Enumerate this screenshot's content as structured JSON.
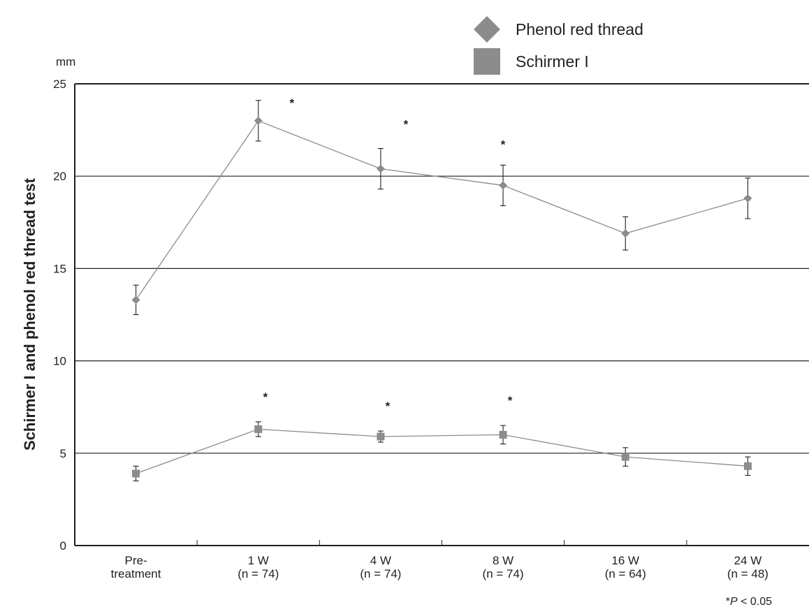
{
  "chart_data": {
    "type": "line",
    "ylabel": "Schirmer I and phenol red thread test",
    "y_unit": "mm",
    "ylim": [
      0,
      25
    ],
    "yticks": [
      "0",
      "5",
      "10",
      "15",
      "20",
      "25"
    ],
    "grid": "horizontal",
    "legend_position": "top-right",
    "categories": [
      [
        "Pre-",
        "treatment"
      ],
      [
        "1 W",
        "(n = 74)"
      ],
      [
        "4 W",
        "(n = 74)"
      ],
      [
        "8 W",
        "(n = 74)"
      ],
      [
        "16 W",
        "(n = 64)"
      ],
      [
        "24 W",
        "(n = 48)"
      ]
    ],
    "series": [
      {
        "name": "Phenol red thread",
        "marker": "diamond",
        "color": "#8c8c8c",
        "values": [
          13.3,
          23.0,
          20.4,
          19.5,
          16.9,
          18.8
        ],
        "error": [
          0.8,
          1.1,
          1.1,
          1.1,
          0.9,
          1.1
        ],
        "significant": [
          false,
          true,
          true,
          true,
          false,
          false
        ]
      },
      {
        "name": "Schirmer I",
        "marker": "square",
        "color": "#8c8c8c",
        "values": [
          3.9,
          6.3,
          5.9,
          6.0,
          4.8,
          4.3
        ],
        "error": [
          0.4,
          0.4,
          0.3,
          0.5,
          0.5,
          0.5
        ],
        "significant": [
          false,
          true,
          true,
          true,
          false,
          false
        ]
      }
    ],
    "significance_marker": "*",
    "note": {
      "prefix": "*",
      "var": "P",
      "suffix": " < 0.05"
    }
  }
}
